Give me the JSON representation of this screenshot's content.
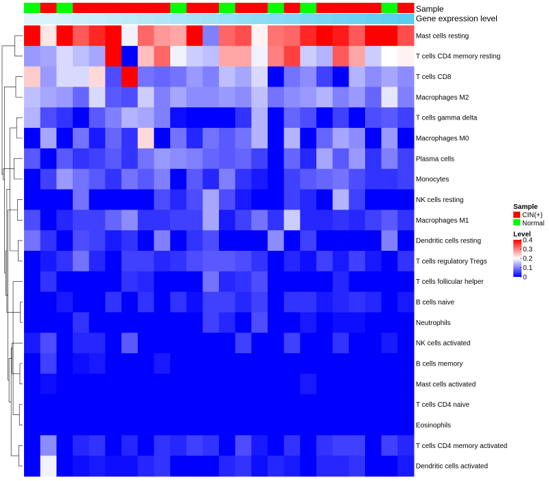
{
  "chart_data": {
    "type": "heatmap",
    "title": "",
    "annotation_labels": [
      "Sample",
      "Gene expression level"
    ],
    "sample_groups": [
      "N",
      "C",
      "N",
      "C",
      "C",
      "C",
      "C",
      "C",
      "C",
      "N",
      "C",
      "C",
      "N",
      "C",
      "C",
      "N",
      "C",
      "N",
      "C",
      "C",
      "C",
      "C",
      "N",
      "C"
    ],
    "expression_gradient": [
      0.0,
      0.04,
      0.08,
      0.12,
      0.16,
      0.2,
      0.24,
      0.28,
      0.32,
      0.36,
      0.4,
      0.44,
      0.48,
      0.52,
      0.56,
      0.6,
      0.64,
      0.68,
      0.72,
      0.76,
      0.8,
      0.84,
      0.88,
      0.92
    ],
    "rows": [
      "Mast cells resting",
      "T cells CD4 memory resting",
      "T cells CD8",
      "Macrophages M2",
      "T cells gamma delta",
      "Macrophages M0",
      "Plasma cells",
      "Monocytes",
      "NK cells resting",
      "Macrophages M1",
      "Dendritic cells resting",
      "T cells regulatory  Tregs",
      "T cells follicular helper",
      "B cells naive",
      "Neutrophils",
      "NK cells activated",
      "B cells memory",
      "Mast cells activated",
      "T cells CD4 naive",
      "Eosinophils",
      "T cells CD4 memory activated",
      "Dendritic cells activated"
    ],
    "values": [
      [
        0.4,
        0.22,
        0.4,
        0.33,
        0.37,
        0.4,
        0.19,
        0.32,
        0.28,
        0.27,
        0.4,
        0.1,
        0.32,
        0.34,
        0.21,
        0.31,
        0.32,
        0.37,
        0.4,
        0.38,
        0.33,
        0.4,
        0.4,
        0.34
      ],
      [
        0.12,
        0.13,
        0.17,
        0.15,
        0.13,
        0.4,
        0.0,
        0.25,
        0.32,
        0.19,
        0.16,
        0.15,
        0.27,
        0.27,
        0.19,
        0.3,
        0.35,
        0.16,
        0.14,
        0.33,
        0.27,
        0.16,
        0.2,
        0.21
      ],
      [
        0.24,
        0.12,
        0.17,
        0.17,
        0.23,
        0.06,
        0.4,
        0.09,
        0.08,
        0.09,
        0.12,
        0.1,
        0.15,
        0.13,
        0.17,
        0.0,
        0.09,
        0.11,
        0.05,
        0.0,
        0.14,
        0.11,
        0.13,
        0.11
      ],
      [
        0.15,
        0.13,
        0.12,
        0.08,
        0.17,
        0.07,
        0.06,
        0.16,
        0.1,
        0.13,
        0.11,
        0.11,
        0.12,
        0.11,
        0.15,
        0.09,
        0.11,
        0.12,
        0.14,
        0.1,
        0.12,
        0.08,
        0.18,
        0.1
      ],
      [
        0.14,
        0.06,
        0.04,
        0.0,
        0.07,
        0.1,
        0.14,
        0.13,
        0.1,
        0.01,
        0.0,
        0.0,
        0.0,
        0.04,
        0.14,
        0.0,
        0.08,
        0.06,
        0.0,
        0.05,
        0.0,
        0.06,
        0.07,
        0.05
      ],
      [
        0.0,
        0.13,
        0.0,
        0.09,
        0.02,
        0.08,
        0.04,
        0.23,
        0.0,
        0.09,
        0.03,
        0.09,
        0.07,
        0.09,
        0.14,
        0.0,
        0.14,
        0.0,
        0.08,
        0.13,
        0.11,
        0.0,
        0.12,
        0.0
      ],
      [
        0.07,
        0.0,
        0.07,
        0.04,
        0.05,
        0.07,
        0.04,
        0.09,
        0.12,
        0.11,
        0.1,
        0.08,
        0.07,
        0.08,
        0.05,
        0.0,
        0.08,
        0.03,
        0.13,
        0.07,
        0.12,
        0.04,
        0.1,
        0.05
      ],
      [
        0.0,
        0.05,
        0.12,
        0.09,
        0.07,
        0.04,
        0.09,
        0.07,
        0.1,
        0.0,
        0.07,
        0.03,
        0.1,
        0.04,
        0.02,
        0.0,
        0.05,
        0.07,
        0.08,
        0.09,
        0.06,
        0.04,
        0.04,
        0.05
      ],
      [
        0.0,
        0.0,
        0.0,
        0.09,
        0.0,
        0.0,
        0.0,
        0.0,
        0.06,
        0.03,
        0.06,
        0.13,
        0.06,
        0.02,
        0.0,
        0.0,
        0.05,
        0.03,
        0.0,
        0.14,
        0.05,
        0.0,
        0.0,
        0.0
      ],
      [
        0.06,
        0.0,
        0.03,
        0.05,
        0.05,
        0.08,
        0.11,
        0.04,
        0.04,
        0.05,
        0.05,
        0.13,
        0.02,
        0.05,
        0.09,
        0.04,
        0.16,
        0.03,
        0.03,
        0.04,
        0.03,
        0.05,
        0.07,
        0.04
      ],
      [
        0.09,
        0.04,
        0.0,
        0.06,
        0.05,
        0.02,
        0.04,
        0.0,
        0.1,
        0.0,
        0.04,
        0.06,
        0.0,
        0.0,
        0.0,
        0.11,
        0.0,
        0.05,
        0.0,
        0.0,
        0.0,
        0.0,
        0.1,
        0.0
      ],
      [
        0.0,
        0.02,
        0.04,
        0.09,
        0.03,
        0.0,
        0.05,
        0.05,
        0.03,
        0.04,
        0.06,
        0.07,
        0.07,
        0.06,
        0.04,
        0.0,
        0.03,
        0.01,
        0.05,
        0.02,
        0.05,
        0.02,
        0.0,
        0.04
      ],
      [
        0.0,
        0.04,
        0.0,
        0.0,
        0.0,
        0.0,
        0.04,
        0.03,
        0.0,
        0.0,
        0.0,
        0.09,
        0.03,
        0.04,
        0.06,
        0.0,
        0.0,
        0.0,
        0.0,
        0.03,
        0.0,
        0.0,
        0.0,
        0.0
      ],
      [
        0.0,
        0.0,
        0.02,
        0.0,
        0.0,
        0.04,
        0.0,
        0.04,
        0.0,
        0.04,
        0.01,
        0.05,
        0.05,
        0.03,
        0.05,
        0.0,
        0.04,
        0.04,
        0.02,
        0.03,
        0.04,
        0.03,
        0.0,
        0.02
      ],
      [
        0.0,
        0.0,
        0.0,
        0.04,
        0.0,
        0.0,
        0.0,
        0.0,
        0.0,
        0.0,
        0.0,
        0.05,
        0.03,
        0.0,
        0.06,
        0.0,
        0.0,
        0.02,
        0.0,
        0.01,
        0.01,
        0.0,
        0.0,
        0.0
      ],
      [
        0.02,
        0.06,
        0.0,
        0.03,
        0.03,
        0.0,
        0.07,
        0.0,
        0.0,
        0.0,
        0.0,
        0.0,
        0.0,
        0.05,
        0.0,
        0.0,
        0.05,
        0.0,
        0.0,
        0.04,
        0.0,
        0.0,
        0.02,
        0.0
      ],
      [
        0.0,
        0.05,
        0.0,
        0.01,
        0.02,
        0.0,
        0.0,
        0.0,
        0.02,
        0.0,
        0.0,
        0.0,
        0.0,
        0.0,
        0.0,
        0.0,
        0.0,
        0.0,
        0.0,
        0.0,
        0.0,
        0.0,
        0.0,
        0.0
      ],
      [
        0.0,
        0.01,
        0.0,
        0.0,
        0.0,
        0.0,
        0.0,
        0.0,
        0.0,
        0.0,
        0.0,
        0.0,
        0.0,
        0.0,
        0.0,
        0.0,
        0.0,
        0.02,
        0.0,
        0.0,
        0.0,
        0.0,
        0.0,
        0.0
      ],
      [
        0.0,
        0.0,
        0.0,
        0.0,
        0.0,
        0.0,
        0.0,
        0.0,
        0.0,
        0.0,
        0.0,
        0.0,
        0.0,
        0.0,
        0.0,
        0.0,
        0.0,
        0.0,
        0.0,
        0.0,
        0.0,
        0.0,
        0.0,
        0.0
      ],
      [
        0.0,
        0.0,
        0.0,
        0.0,
        0.0,
        0.0,
        0.0,
        0.0,
        0.0,
        0.0,
        0.0,
        0.0,
        0.0,
        0.0,
        0.0,
        0.0,
        0.0,
        0.0,
        0.0,
        0.0,
        0.0,
        0.0,
        0.0,
        0.0
      ],
      [
        0.0,
        0.11,
        0.0,
        0.03,
        0.04,
        0.0,
        0.03,
        0.0,
        0.04,
        0.03,
        0.05,
        0.04,
        0.0,
        0.06,
        0.02,
        0.0,
        0.04,
        0.0,
        0.04,
        0.05,
        0.05,
        0.0,
        0.05,
        0.03
      ],
      [
        0.0,
        0.19,
        0.0,
        0.01,
        0.02,
        0.01,
        0.01,
        0.03,
        0.04,
        0.0,
        0.0,
        0.0,
        0.03,
        0.04,
        0.01,
        0.03,
        0.02,
        0.0,
        0.03,
        0.03,
        0.04,
        0.0,
        0.0,
        0.02
      ]
    ],
    "legend": {
      "sample_title": "Sample",
      "sample_entries": [
        {
          "label": "CIN(+)",
          "color": "#ff0000"
        },
        {
          "label": "Normal",
          "color": "#00ff00"
        }
      ],
      "level_title": "Level",
      "level_ticks": [
        "0.4",
        "0.3",
        "0.2",
        "0.1",
        "0"
      ],
      "level_tick_values": [
        0.4,
        0.3,
        0.2,
        0.1,
        0
      ],
      "level_range": [
        0,
        0.4
      ]
    },
    "colors": {
      "low": "#0000ff",
      "mid": "#ffffff",
      "high": "#ff0000",
      "cin": "#ff0000",
      "normal": "#00ff00",
      "expr_low": "#e0f4fc",
      "expr_high": "#4ec9ee"
    },
    "row_dendrogram": [
      [
        13,
        14
      ],
      [
        16,
        17
      ],
      [
        18,
        19
      ],
      [
        20,
        21
      ],
      [
        10,
        11
      ],
      [
        8,
        9
      ],
      [
        4,
        5
      ],
      [
        2,
        3
      ],
      [
        0,
        1
      ],
      [
        6,
        7
      ],
      [
        12,
        24
      ],
      [
        15,
        23
      ],
      [
        25,
        32
      ],
      [
        26,
        28
      ],
      [
        33,
        34
      ],
      [
        27,
        36
      ],
      [
        22,
        35
      ],
      [
        37,
        38
      ],
      [
        29,
        39
      ],
      [
        31,
        40
      ],
      [
        30,
        41
      ]
    ]
  }
}
